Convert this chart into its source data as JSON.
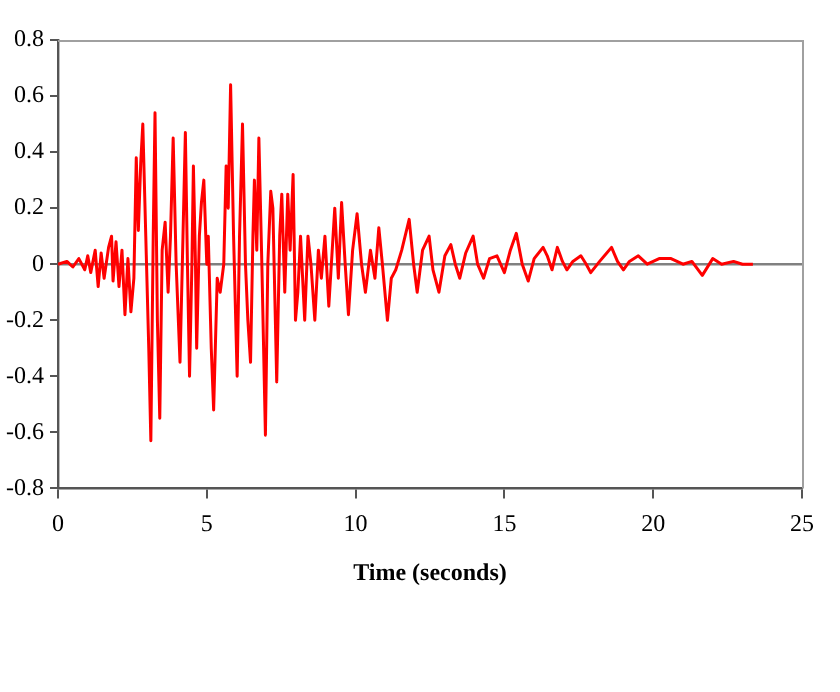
{
  "chart_data": {
    "type": "line",
    "xlabel": "Time (seconds)",
    "xlim": [
      0,
      25
    ],
    "xticks": [
      0,
      5,
      10,
      15,
      20,
      25
    ],
    "ylim": [
      -0.8,
      0.8
    ],
    "yticks": [
      -0.8,
      -0.6,
      -0.4,
      -0.2,
      0,
      0.2,
      0.4,
      0.6,
      0.8
    ],
    "grid": false,
    "legend": false,
    "marker": "none",
    "line_style": "solid",
    "ref_lines": [
      {
        "axis": "y",
        "value": 0,
        "color": "#808080"
      }
    ],
    "series": [
      {
        "color": "#ff0000",
        "x": [
          0,
          0.3,
          0.5,
          0.7,
          0.9,
          1.0,
          1.1,
          1.25,
          1.35,
          1.45,
          1.55,
          1.7,
          1.8,
          1.85,
          1.95,
          2.05,
          2.15,
          2.25,
          2.35,
          2.45,
          2.55,
          2.63,
          2.7,
          2.78,
          2.85,
          2.95,
          3.05,
          3.12,
          3.2,
          3.26,
          3.34,
          3.42,
          3.5,
          3.6,
          3.7,
          3.78,
          3.87,
          3.97,
          4.1,
          4.2,
          4.28,
          4.35,
          4.42,
          4.5,
          4.55,
          4.62,
          4.66,
          4.75,
          4.82,
          4.9,
          5.0,
          5.05,
          5.15,
          5.23,
          5.35,
          5.45,
          5.57,
          5.65,
          5.72,
          5.8,
          5.9,
          6.02,
          6.1,
          6.2,
          6.3,
          6.38,
          6.47,
          6.55,
          6.6,
          6.68,
          6.75,
          6.85,
          6.97,
          7.05,
          7.15,
          7.22,
          7.35,
          7.45,
          7.52,
          7.62,
          7.72,
          7.8,
          7.9,
          7.98,
          8.06,
          8.15,
          8.29,
          8.4,
          8.5,
          8.63,
          8.75,
          8.85,
          8.97,
          9.1,
          9.3,
          9.42,
          9.53,
          9.65,
          9.76,
          9.9,
          10.05,
          10.2,
          10.33,
          10.5,
          10.65,
          10.78,
          10.9,
          11.07,
          11.2,
          11.35,
          11.55,
          11.8,
          11.95,
          12.07,
          12.25,
          12.47,
          12.6,
          12.8,
          13.0,
          13.2,
          13.35,
          13.5,
          13.7,
          13.95,
          14.1,
          14.3,
          14.5,
          14.75,
          15.0,
          15.2,
          15.4,
          15.6,
          15.8,
          16.0,
          16.3,
          16.44,
          16.6,
          16.78,
          16.95,
          17.1,
          17.3,
          17.57,
          17.75,
          17.9,
          18.2,
          18.6,
          18.8,
          19.0,
          19.2,
          19.5,
          19.8,
          20.2,
          20.6,
          21.0,
          21.3,
          21.65,
          22.0,
          22.3,
          22.7,
          23.0,
          23.35
        ],
        "values": [
          0,
          0.01,
          -0.01,
          0.02,
          -0.02,
          0.03,
          -0.03,
          0.05,
          -0.08,
          0.04,
          -0.05,
          0.06,
          0.1,
          -0.06,
          0.08,
          -0.08,
          0.05,
          -0.18,
          0.02,
          -0.17,
          -0.05,
          0.38,
          0.12,
          0.36,
          0.5,
          0.1,
          -0.3,
          -0.63,
          0.1,
          0.54,
          -0.2,
          -0.55,
          0.05,
          0.15,
          -0.1,
          0.1,
          0.45,
          0,
          -0.35,
          0.1,
          0.47,
          0,
          -0.4,
          0,
          0.35,
          0,
          -0.3,
          0.1,
          0.22,
          0.3,
          0,
          0.1,
          -0.3,
          -0.52,
          -0.05,
          -0.1,
          0,
          0.35,
          0.2,
          0.64,
          0.1,
          -0.4,
          0.1,
          0.5,
          0,
          -0.2,
          -0.35,
          0.1,
          0.3,
          0.05,
          0.45,
          0,
          -0.61,
          0,
          0.26,
          0.2,
          -0.42,
          0.1,
          0.25,
          -0.1,
          0.25,
          0.05,
          0.32,
          -0.2,
          -0.1,
          0.1,
          -0.2,
          0.1,
          0,
          -0.2,
          0.05,
          -0.05,
          0.1,
          -0.15,
          0.2,
          -0.05,
          0.22,
          0,
          -0.18,
          0.05,
          0.18,
          0,
          -0.1,
          0.05,
          -0.05,
          0.13,
          0,
          -0.2,
          -0.05,
          -0.02,
          0.05,
          0.16,
          0,
          -0.1,
          0.05,
          0.1,
          -0.02,
          -0.1,
          0.03,
          0.07,
          0,
          -0.05,
          0.04,
          0.1,
          0,
          -0.05,
          0.02,
          0.03,
          -0.03,
          0.05,
          0.11,
          0,
          -0.06,
          0.02,
          0.06,
          0.03,
          -0.02,
          0.06,
          0.01,
          -0.02,
          0.01,
          0.03,
          0,
          -0.03,
          0.01,
          0.06,
          0.01,
          -0.02,
          0.01,
          0.03,
          0,
          0.02,
          0.02,
          0,
          0.01,
          -0.04,
          0.02,
          0,
          0.01,
          0,
          0
        ]
      }
    ]
  }
}
